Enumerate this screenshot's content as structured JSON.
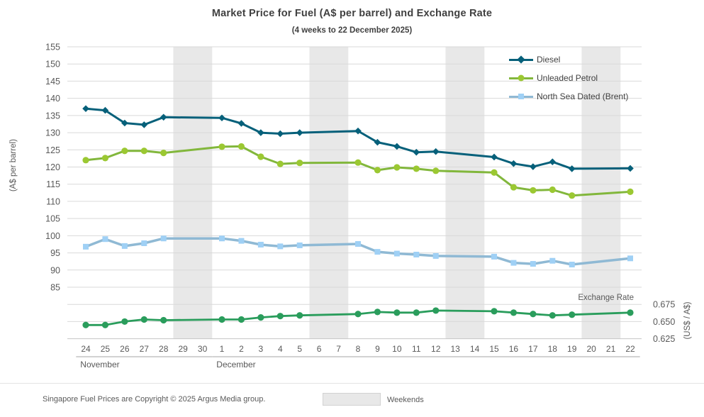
{
  "title": "Market Price for Fuel (A$ per barrel) and Exchange Rate",
  "subtitle": "(4 weeks to 22 December 2025)",
  "colors": {
    "diesel": "#06607a",
    "unleaded_line": "#82b73c",
    "unleaded_marker": "#9bc832",
    "brent_line": "#8fb9d4",
    "brent_marker": "#9fd0f5",
    "exchange": "#2a9d5c",
    "weekend_band": "#e8e8e8",
    "gridline": "#d9d9d9",
    "axis_text": "#595959"
  },
  "legend": [
    {
      "label": "Diesel",
      "color": "#06607a",
      "marker_color": "#06607a",
      "marker": "diamond"
    },
    {
      "label": "Unleaded Petrol",
      "color": "#82b73c",
      "marker_color": "#9bc832",
      "marker": "circle"
    },
    {
      "label": "North Sea Dated (Brent)",
      "color": "#8fb9d4",
      "marker_color": "#9fd0f5",
      "marker": "square"
    }
  ],
  "left_axis": {
    "label": "(A$ per barrel)",
    "ticks": [
      155,
      150,
      145,
      140,
      135,
      130,
      125,
      120,
      115,
      110,
      105,
      100,
      95,
      90,
      85
    ]
  },
  "right_axis": {
    "label": "(US$ / A$)",
    "ticks": [
      "0.675",
      "0.650",
      "0.625"
    ],
    "tick_values": [
      0.675,
      0.65,
      0.625
    ]
  },
  "x_axis": {
    "days": [
      "24",
      "25",
      "26",
      "27",
      "28",
      "29",
      "30",
      "1",
      "2",
      "3",
      "4",
      "5",
      "6",
      "7",
      "8",
      "9",
      "10",
      "11",
      "12",
      "13",
      "14",
      "15",
      "16",
      "17",
      "18",
      "19",
      "20",
      "21",
      "22"
    ],
    "months": [
      {
        "name": "November",
        "start": 0,
        "end": 6
      },
      {
        "name": "December",
        "start": 7,
        "end": 28
      }
    ],
    "weekend_pairs": [
      [
        5,
        6
      ],
      [
        12,
        13
      ],
      [
        19,
        20
      ],
      [
        26,
        27
      ]
    ]
  },
  "exchange_rate_label": "Exchange Rate",
  "footer": {
    "copyright": "Singapore Fuel Prices are Copyright © 2025 Argus Media group.",
    "weekend_label": "Weekends"
  },
  "chart_data": {
    "type": "line",
    "title": "Market Price for Fuel (A$ per barrel) and Exchange Rate",
    "subtitle": "(4 weeks to 22 December 2025)",
    "xlabel": "November / December 2025",
    "ylabel_left": "(A$ per barrel)",
    "ylabel_right": "(US$ / A$)",
    "left_ylim": [
      85,
      155
    ],
    "right_ticks": [
      0.675,
      0.65,
      0.625
    ],
    "grid": true,
    "legend_position": "top-right",
    "x": [
      "Nov 24",
      "Nov 25",
      "Nov 26",
      "Nov 27",
      "Nov 28",
      "Dec 1",
      "Dec 2",
      "Dec 3",
      "Dec 4",
      "Dec 5",
      "Dec 8",
      "Dec 9",
      "Dec 10",
      "Dec 11",
      "Dec 12",
      "Dec 15",
      "Dec 16",
      "Dec 17",
      "Dec 18",
      "Dec 19",
      "Dec 22"
    ],
    "x_indices": [
      0,
      1,
      2,
      3,
      4,
      7,
      8,
      9,
      10,
      11,
      14,
      15,
      16,
      17,
      18,
      21,
      22,
      23,
      24,
      25,
      28
    ],
    "weekend_days": [
      "Nov 29",
      "Nov 30",
      "Dec 6",
      "Dec 7",
      "Dec 13",
      "Dec 14",
      "Dec 20",
      "Dec 21"
    ],
    "series": [
      {
        "name": "Diesel",
        "axis": "left",
        "marker": "diamond",
        "color": "#06607a",
        "marker_color": "#06607a",
        "line_width": 3,
        "values": [
          137.0,
          136.5,
          132.8,
          132.3,
          134.5,
          134.3,
          132.7,
          130.0,
          129.7,
          130.0,
          130.5,
          127.2,
          126.0,
          124.3,
          124.5,
          122.9,
          121.0,
          120.1,
          121.5,
          119.5,
          119.6
        ]
      },
      {
        "name": "Unleaded Petrol",
        "axis": "left",
        "marker": "circle",
        "color": "#82b73c",
        "marker_color": "#9bc832",
        "line_width": 3,
        "values": [
          122.0,
          122.6,
          124.7,
          124.7,
          124.1,
          125.9,
          126.0,
          123.0,
          120.9,
          121.2,
          121.3,
          119.1,
          119.9,
          119.5,
          118.9,
          118.4,
          114.1,
          113.2,
          113.4,
          111.7,
          112.8
        ]
      },
      {
        "name": "North Sea Dated (Brent)",
        "axis": "left",
        "marker": "square",
        "color": "#8fb9d4",
        "marker_color": "#9fd0f5",
        "line_width": 3.5,
        "values": [
          96.8,
          99.0,
          97.0,
          97.8,
          99.2,
          99.2,
          98.5,
          97.4,
          96.9,
          97.2,
          97.6,
          95.3,
          94.8,
          94.5,
          94.1,
          93.9,
          92.1,
          91.8,
          92.7,
          91.6,
          93.4
        ]
      },
      {
        "name": "Exchange Rate",
        "axis": "right",
        "marker": "circle",
        "color": "#2a9d5c",
        "marker_color": "#2a9d5c",
        "line_width": 2.8,
        "values": [
          0.645,
          0.645,
          0.65,
          0.653,
          0.652,
          0.653,
          0.653,
          0.656,
          0.658,
          0.659,
          0.661,
          0.664,
          0.663,
          0.663,
          0.666,
          0.665,
          0.663,
          0.661,
          0.659,
          0.66,
          0.663
        ]
      }
    ]
  }
}
